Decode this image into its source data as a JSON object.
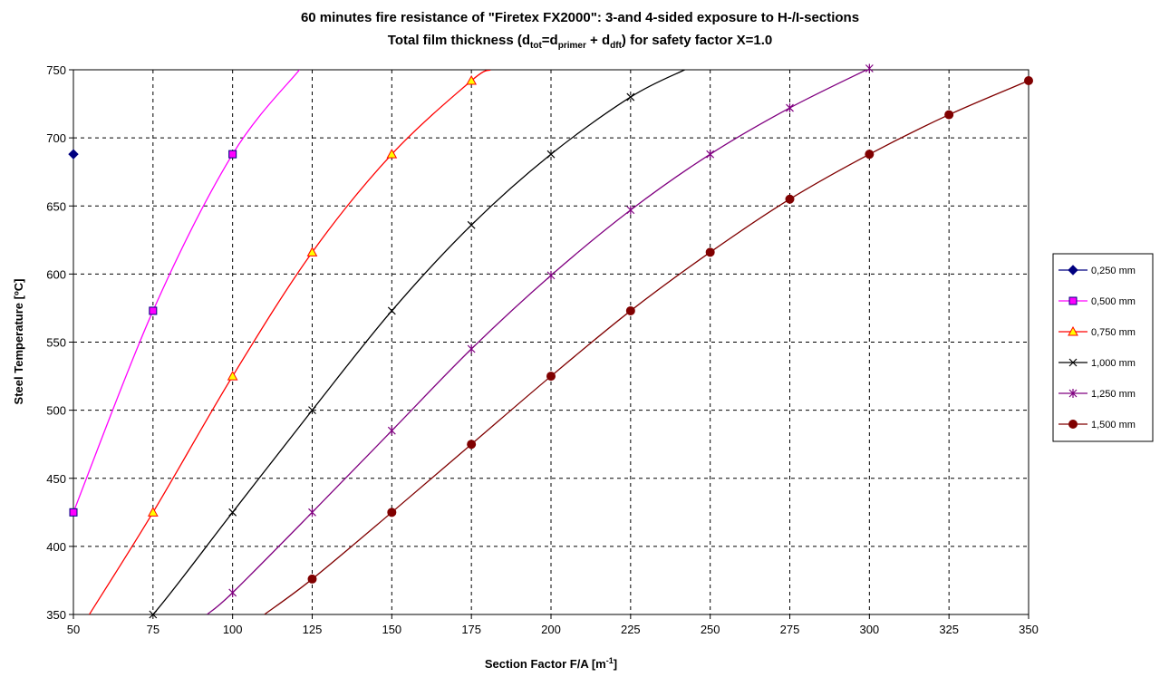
{
  "chart_data": {
    "type": "line",
    "title": {
      "line1": "60 minutes fire resistance of \"Firetex FX2000\": 3-and 4-sided exposure to H-/I-sections",
      "line2_prefix": "Total film thickness (d",
      "line2_sub1": "tot",
      "line2_mid1": "=d",
      "line2_sub2": "primer",
      "line2_mid2": " + d",
      "line2_sub3": "dft",
      "line2_suffix": ") for safety factor  X=1.0"
    },
    "xlabel": "Section Factor F/A [m",
    "xlabel_sup": "-1",
    "xlabel_end": "]",
    "ylabel": "Steel Temperature [ºC]",
    "xlim": [
      50,
      350
    ],
    "ylim": [
      350,
      750
    ],
    "x_ticks": [
      "50",
      "75",
      "100",
      "125",
      "150",
      "175",
      "200",
      "225",
      "250",
      "275",
      "300",
      "325",
      "350"
    ],
    "y_ticks": [
      "350",
      "400",
      "450",
      "500",
      "550",
      "600",
      "650",
      "700",
      "750"
    ],
    "grid": true,
    "legend_position": "right",
    "series": [
      {
        "name": "0,250 mm",
        "color": "#000080",
        "marker": "diamond",
        "points": [
          [
            50,
            688
          ]
        ],
        "line_extension": []
      },
      {
        "name": "0,500 mm",
        "color": "#ff00ff",
        "marker": "square",
        "points": [
          [
            50,
            425
          ],
          [
            75,
            573
          ],
          [
            100,
            688
          ]
        ],
        "line_extension": [
          [
            121,
            750
          ]
        ]
      },
      {
        "name": "0,750 mm",
        "color": "#ff0000",
        "marker": "triangle",
        "points": [
          [
            75,
            425
          ],
          [
            100,
            525
          ],
          [
            125,
            616
          ],
          [
            150,
            688
          ],
          [
            175,
            742
          ]
        ],
        "line_extension": [
          [
            55,
            350
          ],
          [
            181,
            750
          ]
        ]
      },
      {
        "name": "1,000 mm",
        "color": "#000000",
        "marker": "x",
        "points": [
          [
            75,
            350
          ],
          [
            100,
            425
          ],
          [
            125,
            500
          ],
          [
            150,
            573
          ],
          [
            175,
            636
          ],
          [
            200,
            688
          ],
          [
            225,
            730
          ]
        ],
        "line_extension": [
          [
            71,
            350
          ],
          [
            242,
            750
          ]
        ]
      },
      {
        "name": "1,250 mm",
        "color": "#800080",
        "marker": "star",
        "points": [
          [
            100,
            366
          ],
          [
            125,
            425
          ],
          [
            150,
            485
          ],
          [
            175,
            545
          ],
          [
            200,
            599
          ],
          [
            225,
            647
          ],
          [
            250,
            688
          ],
          [
            275,
            722
          ],
          [
            300,
            751
          ]
        ],
        "line_extension": [
          [
            92,
            350
          ]
        ]
      },
      {
        "name": "1,500 mm",
        "color": "#800000",
        "marker": "circle",
        "points": [
          [
            125,
            376
          ],
          [
            150,
            425
          ],
          [
            175,
            475
          ],
          [
            200,
            525
          ],
          [
            225,
            573
          ],
          [
            250,
            616
          ],
          [
            275,
            655
          ],
          [
            300,
            688
          ],
          [
            325,
            717
          ],
          [
            350,
            742
          ]
        ],
        "line_extension": [
          [
            110,
            350
          ]
        ]
      }
    ]
  }
}
